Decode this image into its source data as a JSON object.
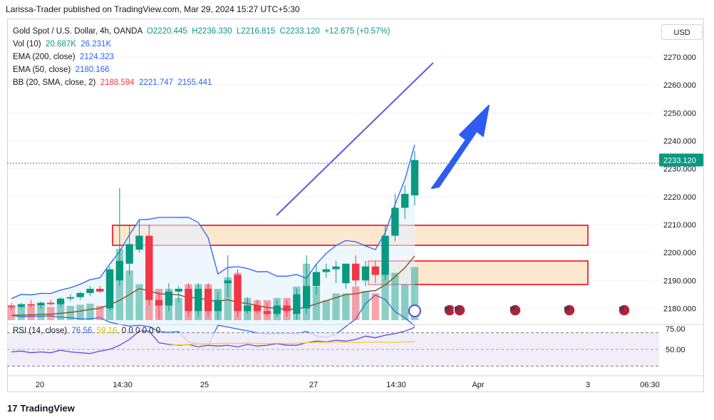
{
  "publisher": "Larissa-Trader published on TradingView.com, Mar 29, 2024 15:27 UTC+5:30",
  "currency": "USD",
  "footer": "TradingView",
  "legend": {
    "title": "Gold Spot / U.S. Dollar, 4h, OANDA",
    "ohlc": {
      "o": "O2220.445",
      "h": "H2236.330",
      "l": "L2216.815",
      "c": "C2233.120",
      "chg": "+12.675 (+0.57%)"
    },
    "vol": {
      "label": "Vol (10)",
      "v1": "20.687K",
      "v2": "26.231K"
    },
    "ema200": {
      "label": "EMA (200, close)",
      "value": "2124.323"
    },
    "ema50": {
      "label": "EMA (50, close)",
      "value": "2180.166"
    },
    "bb": {
      "label": "BB (20, SMA, close, 2)",
      "basis": "2188.594",
      "upper": "2221.747",
      "lower": "2155.441"
    }
  },
  "rsi_legend": {
    "label": "RSI (14, close)",
    "value": "76.56",
    "ma": "59.16",
    "zeros": "0 0 0 0 0 0"
  },
  "colors": {
    "up": "#089981",
    "down": "#f23645",
    "ema": "#8b5a2b",
    "bb": "#2962ff",
    "zone_fill": "#fde8cf",
    "zone_border": "#f23645",
    "trend": "#6a52e0",
    "arrow": "#2e5cf2",
    "rsi": "#5b4bd6",
    "rsi_ma": "#f2d22e",
    "rsi_band": "#ede8f7"
  },
  "chart_data": [
    {
      "type": "candlestick",
      "title": "Gold Spot / U.S. Dollar, 4h, OANDA",
      "ylim": [
        2175,
        2282
      ],
      "y_ticks": [
        "2180.000",
        "2190.000",
        "2200.000",
        "2210.000",
        "2220.000",
        "2230.000",
        "2240.000",
        "2250.000",
        "2260.000",
        "2270.000"
      ],
      "x_ticks": [
        "20",
        "14:30",
        "25",
        "27",
        "14:30",
        "Apr",
        "3",
        "06:30"
      ],
      "last_price": "2233.120",
      "candles": [
        {
          "o": 2181,
          "h": 2182,
          "l": 2179.5,
          "c": 2180.5
        },
        {
          "o": 2180.5,
          "h": 2182,
          "l": 2180,
          "c": 2181.5
        },
        {
          "o": 2181.5,
          "h": 2183,
          "l": 2180.5,
          "c": 2181
        },
        {
          "o": 2181,
          "h": 2182.5,
          "l": 2180,
          "c": 2182
        },
        {
          "o": 2182,
          "h": 2183,
          "l": 2181,
          "c": 2181.5
        },
        {
          "o": 2181.5,
          "h": 2184,
          "l": 2180.5,
          "c": 2183.5
        },
        {
          "o": 2183.5,
          "h": 2185,
          "l": 2182.5,
          "c": 2184
        },
        {
          "o": 2184,
          "h": 2186,
          "l": 2183,
          "c": 2185.5
        },
        {
          "o": 2185.5,
          "h": 2188,
          "l": 2184.5,
          "c": 2187
        },
        {
          "o": 2187,
          "h": 2188,
          "l": 2185.5,
          "c": 2186
        },
        {
          "o": 2180,
          "h": 2195,
          "l": 2179,
          "c": 2194
        },
        {
          "o": 2190,
          "h": 2223,
          "l": 2188,
          "c": 2197
        },
        {
          "o": 2196,
          "h": 2210,
          "l": 2192,
          "c": 2203
        },
        {
          "o": 2201,
          "h": 2212,
          "l": 2200,
          "c": 2206
        },
        {
          "o": 2206,
          "h": 2210,
          "l": 2181,
          "c": 2183
        },
        {
          "o": 2183,
          "h": 2186,
          "l": 2176,
          "c": 2181
        },
        {
          "o": 2181,
          "h": 2189,
          "l": 2179,
          "c": 2186
        },
        {
          "o": 2186,
          "h": 2188,
          "l": 2182,
          "c": 2187
        },
        {
          "o": 2187,
          "h": 2189,
          "l": 2177,
          "c": 2179
        },
        {
          "o": 2179,
          "h": 2189,
          "l": 2177,
          "c": 2187
        },
        {
          "o": 2187,
          "h": 2189,
          "l": 2177,
          "c": 2179
        },
        {
          "o": 2179,
          "h": 2186,
          "l": 2176,
          "c": 2183
        },
        {
          "o": 2189,
          "h": 2199,
          "l": 2184,
          "c": 2190
        },
        {
          "o": 2192,
          "h": 2194,
          "l": 2177,
          "c": 2179
        },
        {
          "o": 2179,
          "h": 2184,
          "l": 2178,
          "c": 2181
        },
        {
          "o": 2181,
          "h": 2183,
          "l": 2178,
          "c": 2179
        },
        {
          "o": 2179,
          "h": 2182,
          "l": 2177,
          "c": 2178
        },
        {
          "o": 2178,
          "h": 2183,
          "l": 2177,
          "c": 2181
        },
        {
          "o": 2181,
          "h": 2183,
          "l": 2177,
          "c": 2179
        },
        {
          "o": 2178,
          "h": 2187,
          "l": 2176,
          "c": 2185
        },
        {
          "o": 2180,
          "h": 2199,
          "l": 2178,
          "c": 2188
        },
        {
          "o": 2188,
          "h": 2196,
          "l": 2185,
          "c": 2193
        },
        {
          "o": 2193,
          "h": 2196,
          "l": 2191,
          "c": 2194
        },
        {
          "o": 2194,
          "h": 2197,
          "l": 2189,
          "c": 2195
        },
        {
          "o": 2189,
          "h": 2195,
          "l": 2187,
          "c": 2196
        },
        {
          "o": 2196,
          "h": 2199,
          "l": 2188,
          "c": 2190
        },
        {
          "o": 2190,
          "h": 2197,
          "l": 2188,
          "c": 2195
        },
        {
          "o": 2195,
          "h": 2197,
          "l": 2189,
          "c": 2192
        },
        {
          "o": 2192,
          "h": 2210,
          "l": 2190,
          "c": 2206
        },
        {
          "o": 2206,
          "h": 2221,
          "l": 2204,
          "c": 2216
        },
        {
          "o": 2216,
          "h": 2224,
          "l": 2212,
          "c": 2221
        },
        {
          "o": 2220.445,
          "h": 2236.33,
          "l": 2216.815,
          "c": 2233.12
        }
      ]
    },
    {
      "type": "line",
      "title": "RSI (14, close)",
      "ylim": [
        20,
        80
      ],
      "y_ticks": [
        "75.00",
        "50.00"
      ],
      "series": [
        {
          "name": "RSI",
          "values": [
            47,
            48,
            46,
            47,
            46,
            49,
            47,
            46,
            45,
            48,
            50,
            55,
            62,
            72,
            72,
            58,
            56,
            55,
            56,
            53,
            55,
            54,
            55,
            53,
            56,
            54,
            55,
            57,
            55,
            55,
            58,
            60,
            59,
            61,
            60,
            62,
            66,
            64,
            67,
            69,
            72,
            76.56
          ]
        },
        {
          "name": "RSI MA",
          "values": [
            null,
            null,
            null,
            null,
            null,
            null,
            null,
            null,
            null,
            null,
            null,
            null,
            null,
            null,
            null,
            null,
            55,
            55.5,
            56,
            56.5,
            57,
            57,
            57.5,
            57,
            57.5,
            57,
            57,
            57.5,
            57,
            57.5,
            58,
            58.5,
            58.5,
            59,
            58.5,
            58.5,
            58.5,
            59,
            58.5,
            58.5,
            59,
            59.16
          ]
        }
      ]
    }
  ]
}
